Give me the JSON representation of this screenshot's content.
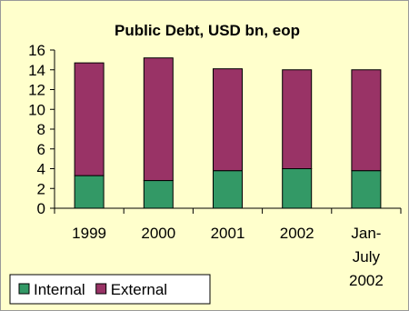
{
  "chart_data": {
    "type": "bar",
    "stacked": true,
    "title": "Public Debt, USD bn, eop",
    "categories": [
      [
        "1999"
      ],
      [
        "2000"
      ],
      [
        "2001"
      ],
      [
        "2002"
      ],
      [
        "Jan-",
        "July",
        "2002"
      ]
    ],
    "series": [
      {
        "name": "Internal",
        "color": "#339966",
        "values": [
          3.3,
          2.8,
          3.8,
          4.0,
          3.8
        ]
      },
      {
        "name": "External",
        "color": "#993366",
        "values": [
          11.4,
          12.4,
          10.3,
          10.0,
          10.2
        ]
      }
    ],
    "ylim": [
      0,
      16
    ],
    "yticks": [
      0,
      2,
      4,
      6,
      8,
      10,
      12,
      14,
      16
    ],
    "grid": false,
    "legend": "bottom-left",
    "background": "#FFFFCC"
  }
}
